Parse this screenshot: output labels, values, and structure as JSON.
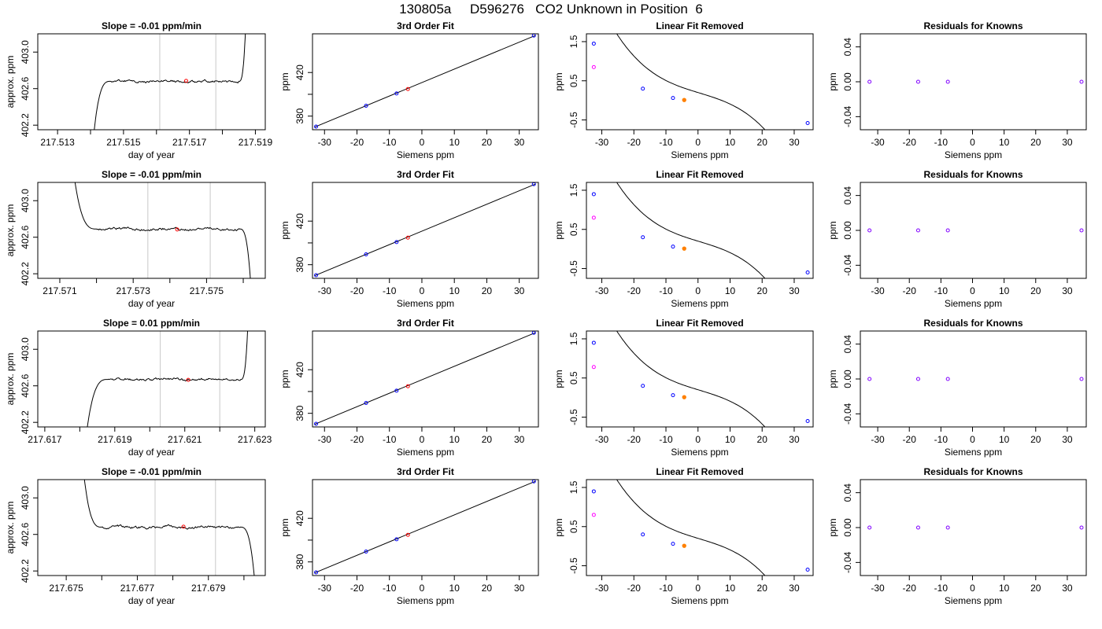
{
  "figure": {
    "title": "130805a     D596276   CO2 Unknown in Position  6"
  },
  "colors": {
    "line": "#000000",
    "grid": "#c8c8c8",
    "known": "#0000ff",
    "unknown": "#ff0000",
    "unknown_fit": "#ff8000",
    "outlier": "#ff00ff",
    "residual": "#8000ff"
  },
  "chart_data": [
    {
      "type": "line",
      "panel": "time",
      "row": 1,
      "title": "Slope =  -0.01  ppm/min",
      "xlabel": "day of year",
      "ylabel": "approx. ppm",
      "xlim": [
        217.5124,
        217.5193
      ],
      "ylim": [
        402.15,
        403.2
      ],
      "xticks": [
        217.513,
        217.514,
        217.515,
        217.516,
        217.517,
        217.518,
        217.519
      ],
      "xtick_labels": [
        "217.513",
        "",
        "217.515",
        "",
        "217.517",
        "",
        "217.519"
      ],
      "yticks": [
        402.2,
        402.6,
        403.0
      ],
      "ytick_labels": [
        "402.2",
        "402.6",
        "403.0"
      ],
      "vlines": [
        217.5161,
        217.5178
      ],
      "marker": {
        "x": 217.5169,
        "y": 402.685
      },
      "trace": {
        "start": 217.5141,
        "rise_end": 217.5146,
        "flat_end": 217.5185,
        "end": 217.5187,
        "level": 402.68,
        "lead": "rise",
        "tail": "rise"
      }
    },
    {
      "type": "line",
      "panel": "fit",
      "row": 1,
      "title": "3rd Order Fit",
      "xlabel": "Siemens ppm",
      "ylabel": "ppm",
      "xlim": [
        -33.7,
        35.9
      ],
      "ylim": [
        367.5,
        455.5
      ],
      "xticks": [
        -30,
        -20,
        -10,
        0,
        10,
        20,
        30
      ],
      "yticks": [
        380,
        400,
        420
      ],
      "ytick_labels": [
        "380",
        "",
        "420"
      ],
      "line": [
        [
          -33,
          370
        ],
        [
          35,
          454
        ]
      ],
      "knowns": [
        [
          -32.6,
          370.4
        ],
        [
          -17.2,
          389.5
        ],
        [
          -7.8,
          400.8
        ],
        [
          34.5,
          453.9
        ]
      ],
      "unknown": [
        -4.3,
        404.8
      ]
    },
    {
      "type": "line",
      "panel": "linear_removed",
      "row": 1,
      "title": "Linear Fit Removed",
      "xlabel": "Siemens ppm",
      "ylabel": "ppm",
      "xlim": [
        -34.8,
        35.9
      ],
      "ylim": [
        -0.75,
        1.7
      ],
      "xticks": [
        -30,
        -20,
        -10,
        0,
        10,
        20,
        30
      ],
      "yticks": [
        -0.5,
        0.5,
        1.5
      ],
      "ytick_labels": [
        "-0.5",
        "0.5",
        "1.5"
      ],
      "cubic": [
        0.2,
        -0.025,
        7e-05,
        -5.05e-05
      ],
      "knowns": [
        [
          -32.5,
          1.45
        ],
        [
          -17.2,
          0.3
        ],
        [
          -7.8,
          0.06
        ],
        [
          34.2,
          -0.58
        ]
      ],
      "outlier": [
        -32.5,
        0.85
      ],
      "unknown": [
        -4.3,
        0.01
      ]
    },
    {
      "type": "scatter",
      "panel": "residuals",
      "row": 1,
      "title": "Residuals for Knowns",
      "xlabel": "Siemens ppm",
      "ylabel": "ppm",
      "xlim": [
        -35.5,
        36
      ],
      "ylim": [
        -0.055,
        0.055
      ],
      "xticks": [
        -30,
        -20,
        -10,
        0,
        10,
        20,
        30
      ],
      "yticks": [
        -0.04,
        0.0,
        0.04
      ],
      "ytick_labels": [
        "-0.04",
        "0.00",
        "0.04"
      ],
      "points": [
        [
          -32.6,
          0.0
        ],
        [
          -17.2,
          0.0
        ],
        [
          -7.8,
          0.0
        ],
        [
          34.5,
          0.0
        ]
      ]
    },
    {
      "type": "line",
      "panel": "time",
      "row": 2,
      "title": "Slope =  -0.01  ppm/min",
      "xlabel": "day of year",
      "ylabel": "approx. ppm",
      "xlim": [
        217.5704,
        217.5766
      ],
      "ylim": [
        402.15,
        403.2
      ],
      "xticks": [
        217.571,
        217.572,
        217.573,
        217.574,
        217.575,
        217.576
      ],
      "xtick_labels": [
        "217.571",
        "",
        "217.573",
        "",
        "217.575",
        ""
      ],
      "yticks": [
        402.2,
        402.6,
        403.0
      ],
      "ytick_labels": [
        "402.2",
        "402.6",
        "403.0"
      ],
      "vlines": [
        217.5734,
        217.5751
      ],
      "marker": {
        "x": 217.5742,
        "y": 402.685
      },
      "trace": {
        "start": 217.5714,
        "rise_end": 217.572,
        "flat_end": 217.5759,
        "end": 217.5762,
        "level": 402.69,
        "lead": "fall",
        "tail": "fall"
      }
    },
    {
      "type": "line",
      "panel": "fit",
      "row": 2,
      "title": "3rd Order Fit",
      "xlabel": "Siemens ppm",
      "ylabel": "ppm",
      "xlim": [
        -33.7,
        35.9
      ],
      "ylim": [
        367.5,
        455.5
      ],
      "xticks": [
        -30,
        -20,
        -10,
        0,
        10,
        20,
        30
      ],
      "yticks": [
        380,
        400,
        420
      ],
      "ytick_labels": [
        "380",
        "",
        "420"
      ],
      "line": [
        [
          -33,
          370
        ],
        [
          35,
          454
        ]
      ],
      "knowns": [
        [
          -32.6,
          370.4
        ],
        [
          -17.2,
          389.5
        ],
        [
          -7.8,
          400.8
        ],
        [
          34.5,
          453.9
        ]
      ],
      "unknown": [
        -4.3,
        404.8
      ]
    },
    {
      "type": "line",
      "panel": "linear_removed",
      "row": 2,
      "title": "Linear Fit Removed",
      "xlabel": "Siemens ppm",
      "ylabel": "ppm",
      "xlim": [
        -34.8,
        35.9
      ],
      "ylim": [
        -0.75,
        1.7
      ],
      "xticks": [
        -30,
        -20,
        -10,
        0,
        10,
        20,
        30
      ],
      "yticks": [
        -0.5,
        0.5,
        1.5
      ],
      "ytick_labels": [
        "-0.5",
        "0.5",
        "1.5"
      ],
      "cubic": [
        0.2,
        -0.025,
        7e-05,
        -5.05e-05
      ],
      "knowns": [
        [
          -32.5,
          1.4
        ],
        [
          -17.2,
          0.3
        ],
        [
          -7.8,
          0.06
        ],
        [
          34.2,
          -0.6
        ]
      ],
      "outlier": [
        -32.5,
        0.8
      ],
      "unknown": [
        -4.3,
        0.01
      ]
    },
    {
      "type": "scatter",
      "panel": "residuals",
      "row": 2,
      "title": "Residuals for Knowns",
      "xlabel": "Siemens ppm",
      "ylabel": "ppm",
      "xlim": [
        -35.5,
        36
      ],
      "ylim": [
        -0.055,
        0.055
      ],
      "xticks": [
        -30,
        -20,
        -10,
        0,
        10,
        20,
        30
      ],
      "yticks": [
        -0.04,
        0.0,
        0.04
      ],
      "ytick_labels": [
        "-0.04",
        "0.00",
        "0.04"
      ],
      "points": [
        [
          -32.6,
          0.0
        ],
        [
          -17.2,
          0.0
        ],
        [
          -7.8,
          0.0
        ],
        [
          34.5,
          0.0
        ]
      ]
    },
    {
      "type": "line",
      "panel": "time",
      "row": 3,
      "title": "Slope =  0.01  ppm/min",
      "xlabel": "day of year",
      "ylabel": "approx. ppm",
      "xlim": [
        217.6168,
        217.6233
      ],
      "ylim": [
        402.15,
        403.2
      ],
      "xticks": [
        217.617,
        217.618,
        217.619,
        217.62,
        217.621,
        217.622,
        217.623
      ],
      "xtick_labels": [
        "217.617",
        "",
        "217.619",
        "",
        "217.621",
        "",
        "217.623"
      ],
      "yticks": [
        402.2,
        402.6,
        403.0
      ],
      "ytick_labels": [
        "402.2",
        "402.6",
        "403.0"
      ],
      "vlines": [
        217.6203,
        217.622
      ],
      "marker": {
        "x": 217.6211,
        "y": 402.665
      },
      "trace": {
        "start": 217.6182,
        "rise_end": 217.6188,
        "flat_end": 217.6226,
        "end": 217.6228,
        "level": 402.67,
        "lead": "rise",
        "tail": "rise"
      }
    },
    {
      "type": "line",
      "panel": "fit",
      "row": 3,
      "title": "3rd Order Fit",
      "xlabel": "Siemens ppm",
      "ylabel": "ppm",
      "xlim": [
        -33.7,
        35.9
      ],
      "ylim": [
        367.5,
        455.5
      ],
      "xticks": [
        -30,
        -20,
        -10,
        0,
        10,
        20,
        30
      ],
      "yticks": [
        380,
        400,
        420
      ],
      "ytick_labels": [
        "380",
        "",
        "420"
      ],
      "line": [
        [
          -33,
          370
        ],
        [
          35,
          454
        ]
      ],
      "knowns": [
        [
          -32.6,
          370.4
        ],
        [
          -17.2,
          389.5
        ],
        [
          -7.8,
          400.8
        ],
        [
          34.5,
          453.9
        ]
      ],
      "unknown": [
        -4.3,
        404.8
      ]
    },
    {
      "type": "line",
      "panel": "linear_removed",
      "row": 3,
      "title": "Linear Fit Removed",
      "xlabel": "Siemens ppm",
      "ylabel": "ppm",
      "xlim": [
        -34.8,
        35.9
      ],
      "ylim": [
        -0.75,
        1.7
      ],
      "xticks": [
        -30,
        -20,
        -10,
        0,
        10,
        20,
        30
      ],
      "yticks": [
        -0.5,
        0.5,
        1.5
      ],
      "ytick_labels": [
        "-0.5",
        "0.5",
        "1.5"
      ],
      "cubic": [
        0.2,
        -0.025,
        7e-05,
        -5.05e-05
      ],
      "knowns": [
        [
          -32.5,
          1.4
        ],
        [
          -17.2,
          0.3
        ],
        [
          -7.8,
          0.06
        ],
        [
          34.2,
          -0.6
        ]
      ],
      "outlier": [
        -32.5,
        0.78
      ],
      "unknown": [
        -4.3,
        0.01
      ]
    },
    {
      "type": "scatter",
      "panel": "residuals",
      "row": 3,
      "title": "Residuals for Knowns",
      "xlabel": "Siemens ppm",
      "ylabel": "ppm",
      "xlim": [
        -35.5,
        36
      ],
      "ylim": [
        -0.055,
        0.055
      ],
      "xticks": [
        -30,
        -20,
        -10,
        0,
        10,
        20,
        30
      ],
      "yticks": [
        -0.04,
        0.0,
        0.04
      ],
      "ytick_labels": [
        "-0.04",
        "0.00",
        "0.04"
      ],
      "points": [
        [
          -32.6,
          0.0
        ],
        [
          -17.2,
          0.0
        ],
        [
          -7.8,
          0.0
        ],
        [
          34.5,
          0.0
        ]
      ]
    },
    {
      "type": "line",
      "panel": "time",
      "row": 4,
      "title": "Slope =  -0.01  ppm/min",
      "xlabel": "day of year",
      "ylabel": "approx. ppm",
      "xlim": [
        217.6742,
        217.6806
      ],
      "ylim": [
        402.15,
        403.2
      ],
      "xticks": [
        217.675,
        217.676,
        217.677,
        217.678,
        217.679,
        217.68
      ],
      "xtick_labels": [
        "217.675",
        "",
        "217.677",
        "",
        "217.679",
        ""
      ],
      "yticks": [
        402.2,
        402.6,
        403.0
      ],
      "ytick_labels": [
        "402.2",
        "402.6",
        "403.0"
      ],
      "vlines": [
        217.6775,
        217.6792
      ],
      "marker": {
        "x": 217.6783,
        "y": 402.685
      },
      "trace": {
        "start": 217.6755,
        "rise_end": 217.676,
        "flat_end": 217.6799,
        "end": 217.6803,
        "level": 402.68,
        "lead": "fall",
        "tail": "fall"
      }
    },
    {
      "type": "line",
      "panel": "fit",
      "row": 4,
      "title": "3rd Order Fit",
      "xlabel": "Siemens ppm",
      "ylabel": "ppm",
      "xlim": [
        -33.7,
        35.9
      ],
      "ylim": [
        367.5,
        455.5
      ],
      "xticks": [
        -30,
        -20,
        -10,
        0,
        10,
        20,
        30
      ],
      "yticks": [
        380,
        400,
        420
      ],
      "ytick_labels": [
        "380",
        "",
        "420"
      ],
      "line": [
        [
          -33,
          370
        ],
        [
          35,
          454
        ]
      ],
      "knowns": [
        [
          -32.6,
          370.4
        ],
        [
          -17.2,
          389.5
        ],
        [
          -7.8,
          400.8
        ],
        [
          34.5,
          453.9
        ]
      ],
      "unknown": [
        -4.3,
        404.8
      ]
    },
    {
      "type": "line",
      "panel": "linear_removed",
      "row": 4,
      "title": "Linear Fit Removed",
      "xlabel": "Siemens ppm",
      "ylabel": "ppm",
      "xlim": [
        -34.8,
        35.9
      ],
      "ylim": [
        -0.75,
        1.7
      ],
      "cubic": [
        0.2,
        -0.025,
        7e-05,
        -5.05e-05
      ],
      "xticks": [
        -30,
        -20,
        -10,
        0,
        10,
        20,
        30
      ],
      "yticks": [
        -0.5,
        0.5,
        1.5
      ],
      "ytick_labels": [
        "-0.5",
        "0.5",
        "1.5"
      ],
      "knowns": [
        [
          -32.5,
          1.4
        ],
        [
          -17.2,
          0.3
        ],
        [
          -7.8,
          0.06
        ],
        [
          34.2,
          -0.6
        ]
      ],
      "outlier": [
        -32.5,
        0.8
      ],
      "unknown": [
        -4.3,
        0.01
      ]
    },
    {
      "type": "scatter",
      "panel": "residuals",
      "row": 4,
      "title": "Residuals for Knowns",
      "xlabel": "Siemens ppm",
      "ylabel": "ppm",
      "xlim": [
        -35.5,
        36
      ],
      "ylim": [
        -0.055,
        0.055
      ],
      "xticks": [
        -30,
        -20,
        -10,
        0,
        10,
        20,
        30
      ],
      "yticks": [
        -0.04,
        0.0,
        0.04
      ],
      "ytick_labels": [
        "-0.04",
        "0.00",
        "0.04"
      ],
      "points": [
        [
          -32.6,
          0.0
        ],
        [
          -17.2,
          0.0
        ],
        [
          -7.8,
          0.0
        ],
        [
          34.5,
          0.0
        ]
      ]
    }
  ]
}
